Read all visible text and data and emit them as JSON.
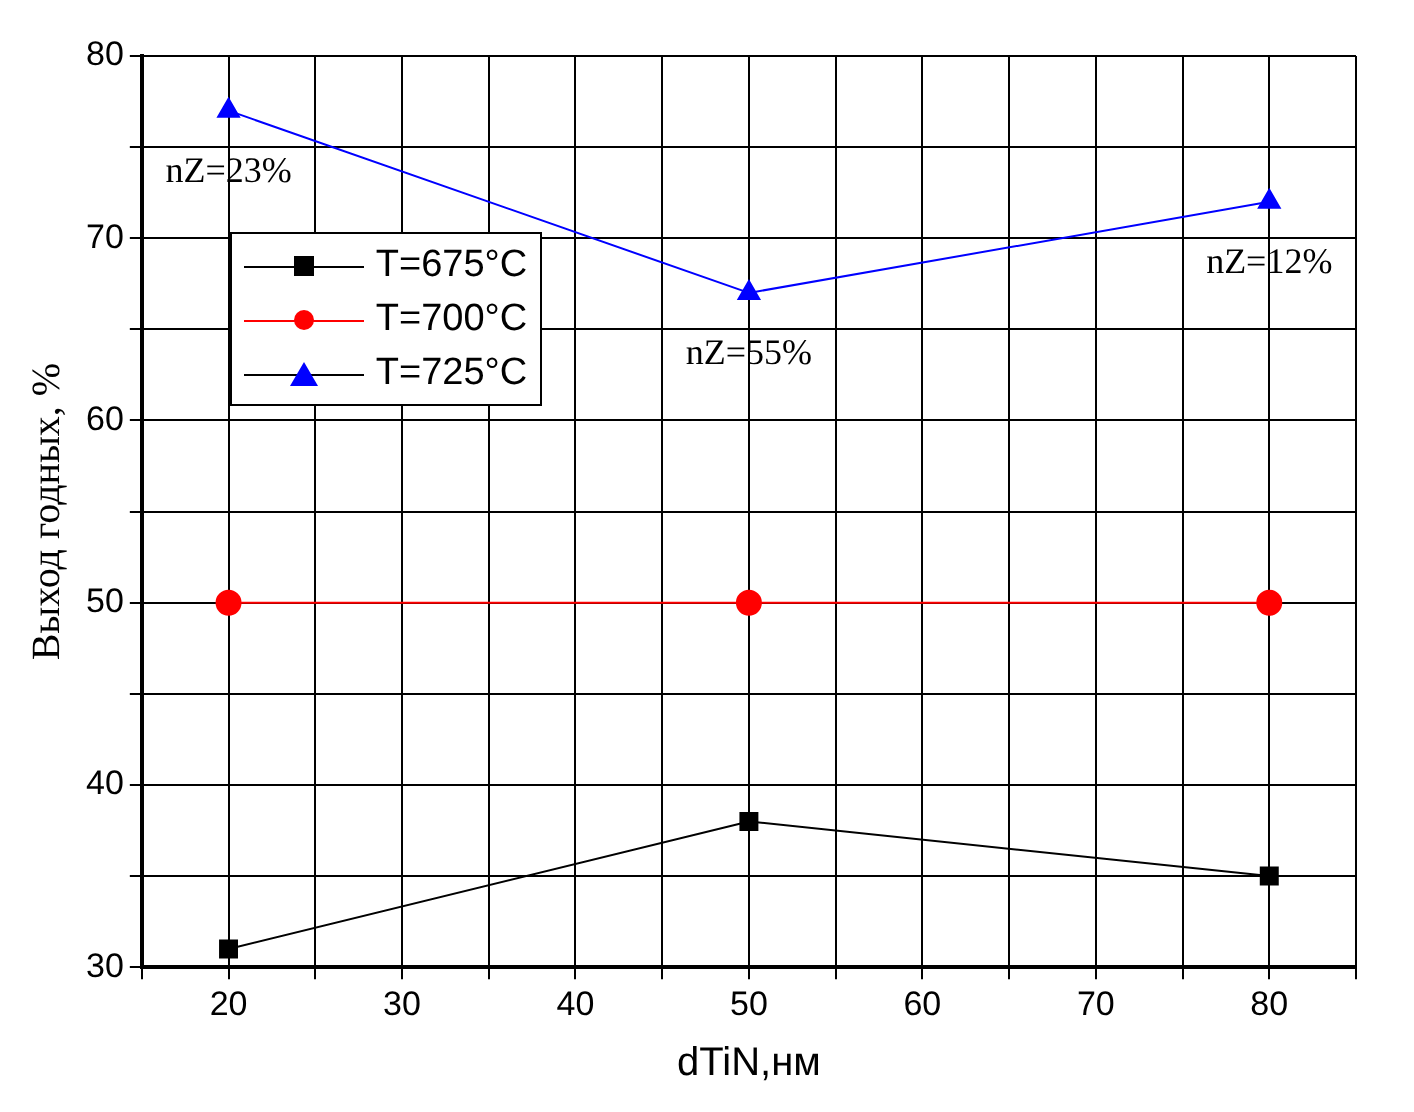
{
  "chart_data": {
    "type": "line",
    "xlabel": "dTiN,нм",
    "ylabel": "Выход годных, %",
    "x": [
      20,
      50,
      80
    ],
    "series": [
      {
        "name": "T=675°C",
        "color": "#000000",
        "marker": "square",
        "values": [
          31,
          38,
          35
        ]
      },
      {
        "name": "T=700°C",
        "color": "#ff0000",
        "marker": "circle",
        "values": [
          50,
          50,
          50
        ]
      },
      {
        "name": "T=725°C",
        "color": "#0000ff",
        "marker": "triangle",
        "values": [
          77,
          67,
          72
        ]
      }
    ],
    "xlim": [
      15,
      85
    ],
    "xticks": [
      {
        "value": 15,
        "label": null
      },
      20,
      {
        "value": 25,
        "label": null
      },
      30,
      {
        "value": 35,
        "label": null
      },
      40,
      {
        "value": 45,
        "label": null
      },
      50,
      {
        "value": 55,
        "label": null
      },
      60,
      {
        "value": 65,
        "label": null
      },
      70,
      {
        "value": 75,
        "label": null
      },
      80,
      {
        "value": 85,
        "label": null
      }
    ],
    "ylim": [
      30,
      80
    ],
    "yticks": [
      30,
      {
        "value": 35,
        "label": null
      },
      40,
      {
        "value": 45,
        "label": null
      },
      50,
      {
        "value": 55,
        "label": null
      },
      60,
      {
        "value": 65,
        "label": null
      },
      70,
      {
        "value": 75,
        "label": null
      },
      80
    ],
    "grid": true,
    "legend": "left",
    "line_style": "solid",
    "annotations": [
      {
        "text": "nZ=23%",
        "x": 20,
        "y": 77
      },
      {
        "text": "nZ=55%",
        "x": 50,
        "y": 67
      },
      {
        "text": "nZ=12%",
        "x": 80,
        "y": 72
      }
    ]
  }
}
